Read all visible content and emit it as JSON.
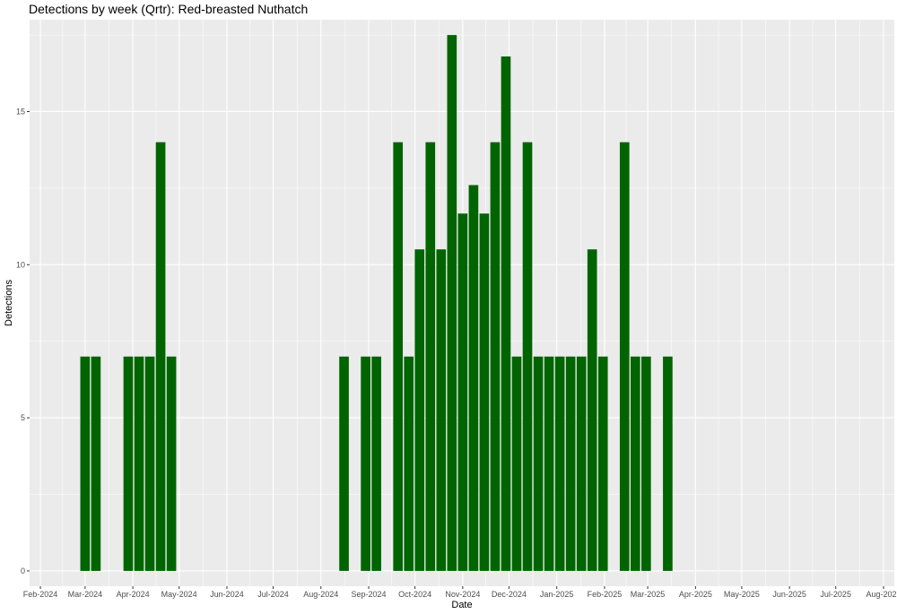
{
  "chart_data": {
    "type": "bar",
    "title": "Detections by week (Qrtr): Red-breasted Nuthatch",
    "xlabel": "Date",
    "ylabel": "Detections",
    "bar_color": "#006400",
    "panel_color": "#ebebeb",
    "grid": true,
    "ylim": [
      -0.5,
      18
    ],
    "yticks": [
      0,
      5,
      10,
      15
    ],
    "xlim": [
      "2024-01-25",
      "2025-08-08"
    ],
    "xticks": [
      {
        "date": "2024-02-01",
        "label": "Feb-2024"
      },
      {
        "date": "2024-03-01",
        "label": "Mar-2024"
      },
      {
        "date": "2024-04-01",
        "label": "Apr-2024"
      },
      {
        "date": "2024-05-01",
        "label": "May-2024"
      },
      {
        "date": "2024-06-01",
        "label": "Jun-2024"
      },
      {
        "date": "2024-07-01",
        "label": "Jul-2024"
      },
      {
        "date": "2024-08-01",
        "label": "Aug-2024"
      },
      {
        "date": "2024-09-01",
        "label": "Sep-2024"
      },
      {
        "date": "2024-10-01",
        "label": "Oct-2024"
      },
      {
        "date": "2024-11-01",
        "label": "Nov-2024"
      },
      {
        "date": "2024-12-01",
        "label": "Dec-2024"
      },
      {
        "date": "2025-01-01",
        "label": "Jan-2025"
      },
      {
        "date": "2025-02-01",
        "label": "Feb-2025"
      },
      {
        "date": "2025-03-01",
        "label": "Mar-2025"
      },
      {
        "date": "2025-04-01",
        "label": "Apr-2025"
      },
      {
        "date": "2025-05-01",
        "label": "May-2025"
      },
      {
        "date": "2025-06-01",
        "label": "Jun-2025"
      },
      {
        "date": "2025-07-01",
        "label": "Jul-2025"
      },
      {
        "date": "2025-08-01",
        "label": "Aug-2025"
      }
    ],
    "bars": [
      {
        "week": "2024-03-01",
        "value": 7
      },
      {
        "week": "2024-03-08",
        "value": 7
      },
      {
        "week": "2024-03-29",
        "value": 7
      },
      {
        "week": "2024-04-05",
        "value": 7
      },
      {
        "week": "2024-04-12",
        "value": 7
      },
      {
        "week": "2024-04-19",
        "value": 14
      },
      {
        "week": "2024-04-26",
        "value": 7
      },
      {
        "week": "2024-08-16",
        "value": 7
      },
      {
        "week": "2024-08-30",
        "value": 7
      },
      {
        "week": "2024-09-06",
        "value": 7
      },
      {
        "week": "2024-09-20",
        "value": 14
      },
      {
        "week": "2024-09-27",
        "value": 7
      },
      {
        "week": "2024-10-04",
        "value": 10.5
      },
      {
        "week": "2024-10-11",
        "value": 14
      },
      {
        "week": "2024-10-18",
        "value": 10.5
      },
      {
        "week": "2024-10-25",
        "value": 17.5
      },
      {
        "week": "2024-11-01",
        "value": 11.67
      },
      {
        "week": "2024-11-08",
        "value": 12.6
      },
      {
        "week": "2024-11-15",
        "value": 11.67
      },
      {
        "week": "2024-11-22",
        "value": 14
      },
      {
        "week": "2024-11-29",
        "value": 16.8
      },
      {
        "week": "2024-12-06",
        "value": 7
      },
      {
        "week": "2024-12-13",
        "value": 14
      },
      {
        "week": "2024-12-20",
        "value": 7
      },
      {
        "week": "2024-12-27",
        "value": 7
      },
      {
        "week": "2025-01-03",
        "value": 7
      },
      {
        "week": "2025-01-10",
        "value": 7
      },
      {
        "week": "2025-01-17",
        "value": 7
      },
      {
        "week": "2025-01-24",
        "value": 10.5
      },
      {
        "week": "2025-01-31",
        "value": 7
      },
      {
        "week": "2025-02-14",
        "value": 14
      },
      {
        "week": "2025-02-21",
        "value": 7
      },
      {
        "week": "2025-02-28",
        "value": 7
      },
      {
        "week": "2025-03-14",
        "value": 7
      }
    ]
  }
}
